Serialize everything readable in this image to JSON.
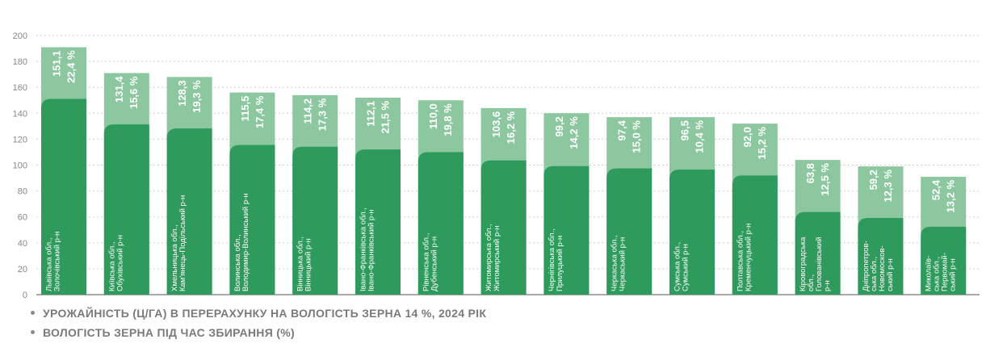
{
  "chart_data": {
    "type": "bar",
    "ylim": [
      0,
      200
    ],
    "yticks": [
      "0",
      "20",
      "40",
      "60",
      "80",
      "100",
      "120",
      "140",
      "160",
      "180",
      "200"
    ],
    "grid": true,
    "colors": {
      "yield": "#2e9a5c",
      "moisture": "#8cc7a0",
      "text": "#ffffff",
      "axis": "#888888",
      "grid": "#cfcfcf"
    },
    "categories": [
      [
        "Львівська обл.,",
        "Золочівський р-н"
      ],
      [
        "Київська обл.,",
        "Обухівський р-н"
      ],
      [
        "Хмельницька обл.,",
        "Кам'янець-Подільський р-н"
      ],
      [
        "Волинська обл.,",
        "Володимир-Волинський р-н"
      ],
      [
        "Вінницька обл.,",
        "Вінницький р-н"
      ],
      [
        "Івано-Франківська обл.,",
        "Івано-Франківський р-н"
      ],
      [
        "Рівненська обл.,",
        "Дубенський р-н"
      ],
      [
        "Житомирська обл.,",
        "Житомирський р-н"
      ],
      [
        "Чернігівська обл.,",
        "Прилуцький р-н"
      ],
      [
        "Черкаська обл.,",
        "Черкаський р-н"
      ],
      [
        "Сумська обл.,",
        "Сумський р-н"
      ],
      [
        "Полтавська обл.,",
        "Кременчуцький р-н"
      ],
      [
        "Кіровоградська",
        "обл.,",
        "Голованівський",
        "р-н"
      ],
      [
        "Дніпропетров-",
        "ська обл.,",
        "Новомосков-",
        "ський р-н"
      ],
      [
        "Миколаїв-",
        "ська обл.,",
        "Первомай-",
        "ський р-н"
      ]
    ],
    "yield_values": [
      151.1,
      131.4,
      128.3,
      115.5,
      114.2,
      112.1,
      110.0,
      103.6,
      99.2,
      97.4,
      96.5,
      92.0,
      63.8,
      59.2,
      52.4
    ],
    "yield_labels": [
      "151,1",
      "131,4",
      "128,3",
      "115,5",
      "114,2",
      "112,1",
      "110,0",
      "103,6",
      "99,2",
      "97,4",
      "96,5",
      "92,0",
      "63,8",
      "59,2",
      "52,4"
    ],
    "moisture_values": [
      22.4,
      15.6,
      19.3,
      17.4,
      17.3,
      21.5,
      19.8,
      16.2,
      14.2,
      15.0,
      10.4,
      15.2,
      12.5,
      12.3,
      13.2
    ],
    "moisture_labels": [
      "22,4 %",
      "15,6 %",
      "19,3 %",
      "17,4 %",
      "17,3 %",
      "21,5 %",
      "19,8 %",
      "16,2 %",
      "14,2 %",
      "15,0 %",
      "10,4 %",
      "15,2 %",
      "12,5 %",
      "12,3 %",
      "13,2 %"
    ],
    "outer_top_values": [
      191,
      171,
      168,
      156,
      154,
      152,
      150,
      144,
      140,
      137,
      137,
      132,
      104,
      99,
      91
    ]
  },
  "legend": {
    "yield": "УРОЖАЙНІСТЬ (Ц/ГА) В ПЕРЕРАХУНКУ НА ВОЛОГІСТЬ ЗЕРНА 14  %, 2024 РІК",
    "moisture": "ВОЛОГІСТЬ ЗЕРНА ПІД ЧАС ЗБИРАННЯ (%)"
  }
}
